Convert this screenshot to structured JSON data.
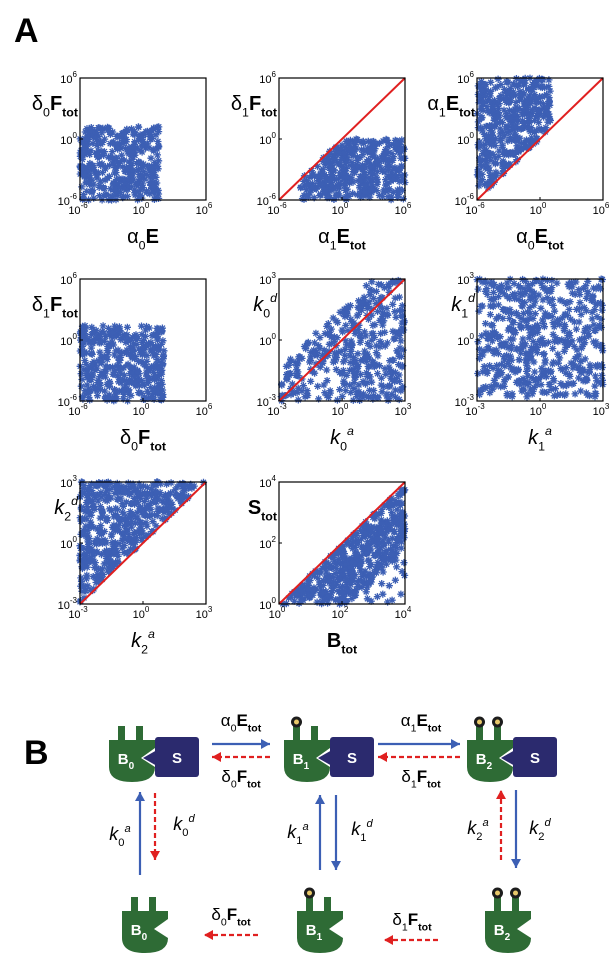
{
  "figure": {
    "panel_a": "A",
    "panel_b": "B"
  },
  "colors": {
    "points": "#3c5fb4",
    "diagonal": "#e02020",
    "protein": "#2e6b35",
    "substrate": "#2b2a6e",
    "arrow_forward": "#3c5fb4",
    "arrow_reverse": "#e02020"
  },
  "chart_data": [
    {
      "type": "scatter",
      "xlabel": [
        {
          "t": "α"
        },
        {
          "t": "0",
          "sub": 1
        },
        {
          "t": "E",
          "bold": 1
        }
      ],
      "ylabel": [
        {
          "t": "δ"
        },
        {
          "t": "0",
          "sub": 1
        },
        {
          "t": "F",
          "bold": 1
        },
        {
          "t": "tot",
          "sub": 1,
          "bold": 1
        }
      ],
      "x_ticks": [
        "10",
        "10",
        "10"
      ],
      "x_tick_exp": [
        "-6",
        "0",
        "6"
      ],
      "y_ticks": [
        "10",
        "10",
        "10"
      ],
      "y_tick_exp": [
        "-6",
        "0",
        "6"
      ],
      "xlim": [
        -6,
        6
      ],
      "ylim": [
        -6,
        6
      ],
      "log_scale": true,
      "diagonal": false,
      "cloud": {
        "x_range": [
          -6,
          1.5
        ],
        "y_range": [
          -6,
          1.2
        ],
        "n": 380,
        "shape": "corr",
        "max_above_diag": 6.5
      }
    },
    {
      "type": "scatter",
      "xlabel": [
        {
          "t": "α"
        },
        {
          "t": "1",
          "sub": 1
        },
        {
          "t": "E",
          "bold": 1
        },
        {
          "t": "tot",
          "sub": 1,
          "bold": 1
        }
      ],
      "ylabel": [
        {
          "t": "δ"
        },
        {
          "t": "1",
          "sub": 1
        },
        {
          "t": "F",
          "bold": 1
        },
        {
          "t": "tot",
          "sub": 1,
          "bold": 1
        }
      ],
      "x_ticks": [
        "10",
        "10",
        "10"
      ],
      "x_tick_exp": [
        "-6",
        "0",
        "6"
      ],
      "y_ticks": [
        "10",
        "10",
        "10"
      ],
      "y_tick_exp": [
        "-6",
        "0",
        "6"
      ],
      "xlim": [
        -6,
        6
      ],
      "ylim": [
        -6,
        6
      ],
      "log_scale": true,
      "diagonal": true,
      "cloud": {
        "x_range": [
          -4,
          6
        ],
        "y_range": [
          -6,
          0
        ],
        "n": 420,
        "shape": "below"
      }
    },
    {
      "type": "scatter",
      "xlabel": [
        {
          "t": "α"
        },
        {
          "t": "0",
          "sub": 1
        },
        {
          "t": "E",
          "bold": 1
        },
        {
          "t": "tot",
          "sub": 1,
          "bold": 1
        }
      ],
      "ylabel": [
        {
          "t": "α"
        },
        {
          "t": "1",
          "sub": 1
        },
        {
          "t": "E",
          "bold": 1
        },
        {
          "t": "tot",
          "sub": 1,
          "bold": 1
        }
      ],
      "x_ticks": [
        "10",
        "10",
        "10"
      ],
      "x_tick_exp": [
        "-6",
        "0",
        "6"
      ],
      "y_ticks": [
        "10",
        "10",
        "10"
      ],
      "y_tick_exp": [
        "-6",
        "0",
        "6"
      ],
      "xlim": [
        -6,
        6
      ],
      "ylim": [
        -6,
        6
      ],
      "log_scale": true,
      "diagonal": true,
      "cloud": {
        "x_range": [
          -6,
          1
        ],
        "y_range": [
          -5,
          6
        ],
        "n": 420,
        "shape": "above"
      }
    },
    {
      "type": "scatter",
      "xlabel": [
        {
          "t": "δ"
        },
        {
          "t": "0",
          "sub": 1
        },
        {
          "t": "F",
          "bold": 1
        },
        {
          "t": "tot",
          "sub": 1,
          "bold": 1
        }
      ],
      "ylabel": [
        {
          "t": "δ"
        },
        {
          "t": "1",
          "sub": 1
        },
        {
          "t": "F",
          "bold": 1
        },
        {
          "t": "tot",
          "sub": 1,
          "bold": 1
        }
      ],
      "x_ticks": [
        "10",
        "10",
        "10"
      ],
      "x_tick_exp": [
        "-6",
        "0",
        "6"
      ],
      "y_ticks": [
        "10",
        "10",
        "10"
      ],
      "y_tick_exp": [
        "-6",
        "0",
        "6"
      ],
      "xlim": [
        -6,
        6
      ],
      "ylim": [
        -6,
        6
      ],
      "log_scale": true,
      "diagonal": false,
      "cloud": {
        "x_range": [
          -6,
          2
        ],
        "y_range": [
          -6,
          1.4
        ],
        "n": 380,
        "shape": "box"
      }
    },
    {
      "type": "scatter",
      "xlabel": [
        {
          "t": "k",
          "italic": 1
        },
        {
          "t": "0",
          "sub": 1
        },
        {
          "t": "a",
          "sup": 1,
          "italic": 1
        }
      ],
      "ylabel": [
        {
          "t": "k",
          "italic": 1
        },
        {
          "t": "0",
          "sub": 1
        },
        {
          "t": "d",
          "sup": 1,
          "italic": 1
        }
      ],
      "x_ticks": [
        "10",
        "10",
        "10"
      ],
      "x_tick_exp": [
        "-3",
        "0",
        "3"
      ],
      "y_ticks": [
        "10",
        "10",
        "10"
      ],
      "y_tick_exp": [
        "-3",
        "0",
        "3"
      ],
      "xlim": [
        -3,
        3
      ],
      "ylim": [
        -3,
        3
      ],
      "log_scale": true,
      "diagonal": true,
      "cloud": {
        "x_range": [
          -3,
          3
        ],
        "y_range": [
          -3,
          3
        ],
        "n": 380,
        "shape": "corr",
        "max_above_diag": 1.6
      }
    },
    {
      "type": "scatter",
      "xlabel": [
        {
          "t": "k",
          "italic": 1
        },
        {
          "t": "1",
          "sub": 1
        },
        {
          "t": "a",
          "sup": 1,
          "italic": 1
        }
      ],
      "ylabel": [
        {
          "t": "k",
          "italic": 1
        },
        {
          "t": "1",
          "sub": 1
        },
        {
          "t": "d",
          "sup": 1,
          "italic": 1
        }
      ],
      "x_ticks": [
        "10",
        "10",
        "10"
      ],
      "x_tick_exp": [
        "-3",
        "0",
        "3"
      ],
      "y_ticks": [
        "10",
        "10",
        "10"
      ],
      "y_tick_exp": [
        "-3",
        "0",
        "3"
      ],
      "xlim": [
        -3,
        3
      ],
      "ylim": [
        -3,
        3
      ],
      "log_scale": true,
      "diagonal": false,
      "cloud": {
        "x_range": [
          -3,
          3
        ],
        "y_range": [
          -2.8,
          3
        ],
        "n": 520,
        "shape": "box"
      }
    },
    {
      "type": "scatter",
      "xlabel": [
        {
          "t": "k",
          "italic": 1
        },
        {
          "t": "2",
          "sub": 1
        },
        {
          "t": "a",
          "sup": 1,
          "italic": 1
        }
      ],
      "ylabel": [
        {
          "t": "k",
          "italic": 1
        },
        {
          "t": "2",
          "sub": 1
        },
        {
          "t": "d",
          "sup": 1,
          "italic": 1
        }
      ],
      "x_ticks": [
        "10",
        "10",
        "10"
      ],
      "x_tick_exp": [
        "-3",
        "0",
        "3"
      ],
      "y_ticks": [
        "10",
        "10",
        "10"
      ],
      "y_tick_exp": [
        "-3",
        "0",
        "3"
      ],
      "xlim": [
        -3,
        3
      ],
      "ylim": [
        -3,
        3
      ],
      "log_scale": true,
      "diagonal": true,
      "cloud": {
        "x_range": [
          -3,
          3
        ],
        "y_range": [
          -3,
          3
        ],
        "n": 480,
        "shape": "above"
      }
    },
    {
      "type": "scatter",
      "xlabel": [
        {
          "t": "B",
          "bold": 1
        },
        {
          "t": "tot",
          "sub": 1,
          "bold": 1
        }
      ],
      "ylabel": [
        {
          "t": "S",
          "bold": 1
        },
        {
          "t": "tot",
          "sub": 1,
          "bold": 1
        }
      ],
      "x_ticks": [
        "10",
        "10",
        "10"
      ],
      "x_tick_exp": [
        "0",
        "2",
        "4"
      ],
      "y_ticks": [
        "10",
        "10",
        "10"
      ],
      "y_tick_exp": [
        "0",
        "2",
        "4"
      ],
      "xlim": [
        0,
        4
      ],
      "ylim": [
        0,
        4
      ],
      "log_scale": true,
      "diagonal": true,
      "cloud": {
        "x_range": [
          0,
          4
        ],
        "y_range": [
          0,
          3.8
        ],
        "n": 520,
        "shape": "below_tight"
      }
    }
  ],
  "scheme": {
    "complexes": [
      {
        "b": "B",
        "bsub": "0",
        "s": "S"
      },
      {
        "b": "B",
        "bsub": "1",
        "s": "S"
      },
      {
        "b": "B",
        "bsub": "2",
        "s": "S"
      }
    ],
    "free": [
      {
        "b": "B",
        "bsub": "0"
      },
      {
        "b": "B",
        "bsub": "1"
      },
      {
        "b": "B",
        "bsub": "2"
      }
    ],
    "rates": {
      "top01_fwd": [
        {
          "t": "α"
        },
        {
          "t": "0",
          "sub": 1
        },
        {
          "t": "E",
          "bold": 1
        },
        {
          "t": "tot",
          "sub": 1,
          "bold": 1
        }
      ],
      "top01_rev": [
        {
          "t": "δ"
        },
        {
          "t": "0",
          "sub": 1
        },
        {
          "t": "F",
          "bold": 1
        },
        {
          "t": "tot",
          "sub": 1,
          "bold": 1
        }
      ],
      "top12_fwd": [
        {
          "t": "α"
        },
        {
          "t": "1",
          "sub": 1
        },
        {
          "t": "E",
          "bold": 1
        },
        {
          "t": "tot",
          "sub": 1,
          "bold": 1
        }
      ],
      "top12_rev": [
        {
          "t": "δ"
        },
        {
          "t": "1",
          "sub": 1
        },
        {
          "t": "F",
          "bold": 1
        },
        {
          "t": "tot",
          "sub": 1,
          "bold": 1
        }
      ],
      "bot01": [
        {
          "t": "δ"
        },
        {
          "t": "0",
          "sub": 1
        },
        {
          "t": "F",
          "bold": 1
        },
        {
          "t": "tot",
          "sub": 1,
          "bold": 1
        }
      ],
      "bot12": [
        {
          "t": "δ"
        },
        {
          "t": "1",
          "sub": 1
        },
        {
          "t": "F",
          "bold": 1
        },
        {
          "t": "tot",
          "sub": 1,
          "bold": 1
        }
      ],
      "k0a": [
        {
          "t": "k",
          "italic": 1
        },
        {
          "t": "0",
          "sub": 1
        },
        {
          "t": "a",
          "sup": 1,
          "italic": 1
        }
      ],
      "k0d": [
        {
          "t": "k",
          "italic": 1
        },
        {
          "t": "0",
          "sub": 1
        },
        {
          "t": "d",
          "sup": 1,
          "italic": 1
        }
      ],
      "k1a": [
        {
          "t": "k",
          "italic": 1
        },
        {
          "t": "1",
          "sub": 1
        },
        {
          "t": "a",
          "sup": 1,
          "italic": 1
        }
      ],
      "k1d": [
        {
          "t": "k",
          "italic": 1
        },
        {
          "t": "1",
          "sub": 1
        },
        {
          "t": "d",
          "sup": 1,
          "italic": 1
        }
      ],
      "k2a": [
        {
          "t": "k",
          "italic": 1
        },
        {
          "t": "2",
          "sub": 1
        },
        {
          "t": "a",
          "sup": 1,
          "italic": 1
        }
      ],
      "k2d": [
        {
          "t": "k",
          "italic": 1
        },
        {
          "t": "2",
          "sub": 1
        },
        {
          "t": "d",
          "sup": 1,
          "italic": 1
        }
      ]
    }
  }
}
